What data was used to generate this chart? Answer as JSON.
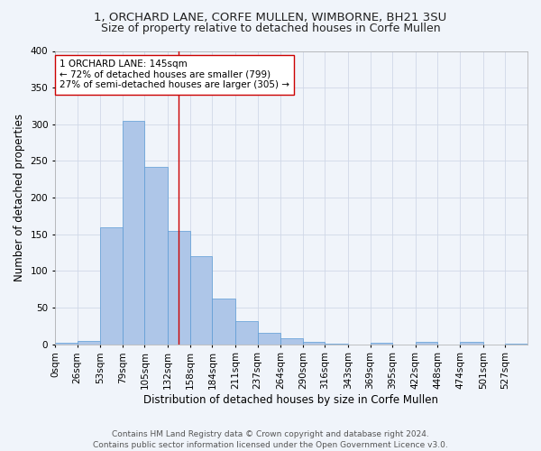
{
  "title1": "1, ORCHARD LANE, CORFE MULLEN, WIMBORNE, BH21 3SU",
  "title2": "Size of property relative to detached houses in Corfe Mullen",
  "xlabel": "Distribution of detached houses by size in Corfe Mullen",
  "ylabel": "Number of detached properties",
  "footer1": "Contains HM Land Registry data © Crown copyright and database right 2024.",
  "footer2": "Contains public sector information licensed under the Open Government Licence v3.0.",
  "annotation_line1": "1 ORCHARD LANE: 145sqm",
  "annotation_line2": "← 72% of detached houses are smaller (799)",
  "annotation_line3": "27% of semi-detached houses are larger (305) →",
  "property_size": 145,
  "bar_color": "#aec6e8",
  "bar_edge_color": "#5b9bd5",
  "vline_color": "#cc0000",
  "annotation_box_edge": "#cc0000",
  "grid_color": "#d0d8e8",
  "background_color": "#f0f4fa",
  "categories": [
    "0sqm",
    "26sqm",
    "53sqm",
    "79sqm",
    "105sqm",
    "132sqm",
    "158sqm",
    "184sqm",
    "211sqm",
    "237sqm",
    "264sqm",
    "290sqm",
    "316sqm",
    "343sqm",
    "369sqm",
    "395sqm",
    "422sqm",
    "448sqm",
    "474sqm",
    "501sqm",
    "527sqm"
  ],
  "bin_edges": [
    0,
    26,
    53,
    79,
    105,
    132,
    158,
    184,
    211,
    237,
    264,
    290,
    316,
    343,
    369,
    395,
    422,
    448,
    474,
    501,
    527,
    553
  ],
  "values": [
    2,
    5,
    160,
    305,
    242,
    155,
    120,
    62,
    32,
    15,
    8,
    3,
    1,
    0,
    2,
    0,
    3,
    0,
    3,
    0,
    1
  ],
  "ylim": [
    0,
    400
  ],
  "yticks": [
    0,
    50,
    100,
    150,
    200,
    250,
    300,
    350,
    400
  ],
  "title1_fontsize": 9.5,
  "title2_fontsize": 9,
  "xlabel_fontsize": 8.5,
  "ylabel_fontsize": 8.5,
  "tick_fontsize": 7.5,
  "footer_fontsize": 6.5,
  "annotation_fontsize": 7.5
}
